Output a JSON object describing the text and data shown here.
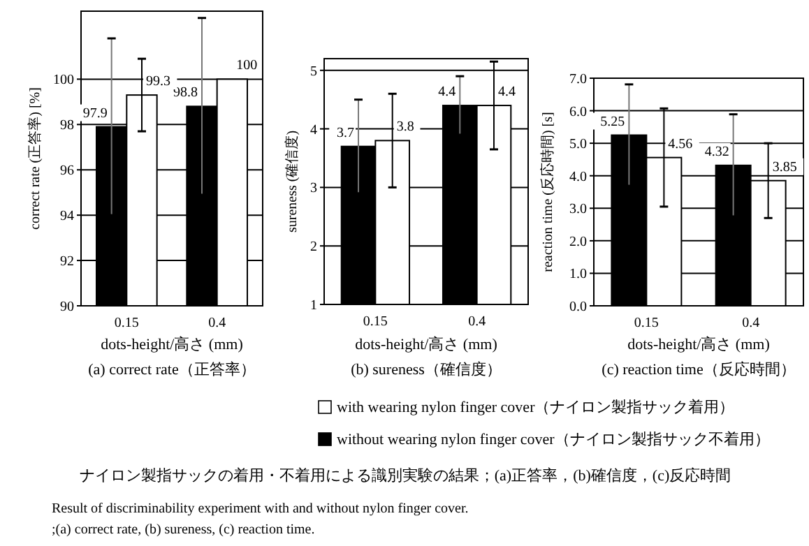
{
  "chart_data": [
    {
      "type": "bar",
      "title": "(a) correct rate（正答率）",
      "xlabel": "dots-height/高さ (mm)",
      "ylabel": "correct rate (正答率) [%]",
      "categories": [
        "0.15",
        "0.4"
      ],
      "series": [
        {
          "color": "#000000",
          "values": [
            97.9,
            98.8
          ],
          "errors": [
            3.9,
            3.9
          ]
        },
        {
          "color": "#ffffff",
          "values": [
            99.3,
            100
          ],
          "errors": [
            1.6,
            null
          ]
        }
      ],
      "ylim": [
        90,
        103
      ],
      "yticks": [
        90,
        92,
        94,
        96,
        98,
        100
      ],
      "grid": "y",
      "data_labels": true,
      "annotations": [
        "ナイロン製指サックの着用・不着用による識別実験の結果；(a)正答率，(b)確信度，(c)反応時間",
        "Result of discriminability experiment  with and without nylon finger cover.",
        ";(a) correct rate, (b) sureness, (c) reaction time."
      ]
    },
    {
      "type": "bar",
      "title": "(b) sureness（確信度）",
      "xlabel": "dots-height/高さ (mm)",
      "ylabel": "sureness (確信度)",
      "categories": [
        "0.15",
        "0.4"
      ],
      "series": [
        {
          "color": "#000000",
          "values": [
            3.7,
            4.4
          ],
          "errors": [
            0.8,
            0.5
          ]
        },
        {
          "color": "#ffffff",
          "values": [
            3.8,
            4.4
          ],
          "errors": [
            0.8,
            0.75
          ]
        }
      ],
      "ylim": [
        1,
        5.2
      ],
      "yticks": [
        1,
        2,
        3,
        4,
        5
      ],
      "grid": "y",
      "data_labels": true
    },
    {
      "type": "bar",
      "title": "(c) reaction time（反応時間）",
      "xlabel": "dots-height/高さ (mm)",
      "ylabel": "reaction time (反応時間) [s]",
      "categories": [
        "0.15",
        "0.4"
      ],
      "series": [
        {
          "name": "without wearing nylon finger cover（ナイロン製指サック不着用）",
          "color": "#000000",
          "values": [
            5.25,
            4.32
          ],
          "errors": [
            1.56,
            1.57
          ]
        },
        {
          "name": "with wearing nylon finger cover（ナイロン製指サック着用）",
          "color": "#ffffff",
          "values": [
            4.56,
            3.85
          ],
          "errors": [
            1.51,
            1.15
          ]
        }
      ],
      "ylim": [
        0,
        7
      ],
      "yticks": [
        {
          "value": 0,
          "label": "0.0"
        },
        {
          "value": 1,
          "label": "1.0"
        },
        {
          "value": 2,
          "label": "2.0"
        },
        {
          "value": 3,
          "label": "3.0"
        },
        {
          "value": 4,
          "label": "4.0"
        },
        {
          "value": 5,
          "label": "5.0"
        },
        {
          "value": 6,
          "label": "6.0"
        },
        {
          "value": 7,
          "label": "7.0"
        }
      ],
      "grid": "y",
      "data_labels": true,
      "legend": "bottom"
    }
  ]
}
